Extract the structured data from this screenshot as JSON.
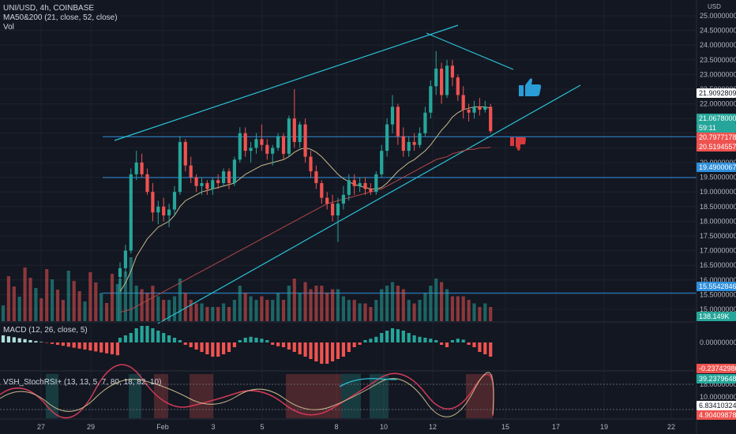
{
  "legend": {
    "symbol_line": "UNI/USD, 4h, COINBASE",
    "ma_line": "MA50&200 (21, close, 52, close)",
    "vol_line": "Vol",
    "macd_line": "MACD (12, 26, close, 5)",
    "stoch_line": "VSH_StochRSI+ (13, 13, 5, 7, 80, 18, 82, 10)"
  },
  "colors": {
    "background": "#131722",
    "up": "#26a69a",
    "down": "#ef5350",
    "trendline": "#29c3d6",
    "hline": "#2f8fdc",
    "ma_fast": "#c8b98a",
    "ma_slow": "#b04848",
    "grid": "#1e222d"
  },
  "chart_data": {
    "type": "candlestick",
    "title": "UNI/USD, 4h, COINBASE",
    "ylabel": "USD",
    "ylim": [
      14.5,
      25.5
    ],
    "x_ticks": [
      "27",
      "29",
      "Feb",
      "3",
      "5",
      "8",
      "10",
      "12",
      "15",
      "17",
      "19",
      "22"
    ],
    "y_ticks": [
      "25.00000000",
      "24.50000000",
      "24.00000000",
      "23.50000000",
      "23.00000000",
      "22.50000000",
      "22.00000000",
      "21.50000000",
      "21.00000000",
      "20.50000000",
      "20.00000000",
      "19.50000000",
      "19.00000000",
      "18.50000000",
      "18.00000000",
      "17.50000000",
      "17.00000000",
      "16.50000000",
      "16.00000000",
      "15.50000000",
      "15.00000000"
    ],
    "price_tags": [
      {
        "label": "21.90928095",
        "value": 21.909,
        "color": "#ffffff"
      },
      {
        "label": "21.06780000",
        "value": 21.068,
        "color": "#26a69a"
      },
      {
        "label": "59:11",
        "value": 20.9,
        "color": "#26a69a"
      },
      {
        "label": "20.79771786",
        "value": 20.798,
        "color": "#ef5350"
      },
      {
        "label": "20.51945577",
        "value": 20.519,
        "color": "#ef5350"
      },
      {
        "label": "19.49000672",
        "value": 19.49,
        "color": "#2f8fdc"
      },
      {
        "label": "15.55428466",
        "value": 15.554,
        "color": "#2f8fdc"
      }
    ],
    "volume_label": "138.149K",
    "horizontal_lines": [
      20.88,
      19.49,
      15.554
    ],
    "macd_ticks": [
      "0.00000000"
    ],
    "macd_tag": "-0.23742986",
    "stoch_ticks": [
      "18.00000000",
      "10.00000000"
    ],
    "stoch_tags": [
      "39.23796487",
      "6.83410324",
      "4.90409878"
    ],
    "candles": [
      {
        "o": 16.1,
        "h": 16.6,
        "l": 15.6,
        "c": 16.4
      },
      {
        "o": 16.4,
        "h": 17.2,
        "l": 16.1,
        "c": 17.0
      },
      {
        "o": 17.0,
        "h": 19.8,
        "l": 16.9,
        "c": 19.6
      },
      {
        "o": 19.6,
        "h": 20.4,
        "l": 19.4,
        "c": 20.0
      },
      {
        "o": 20.0,
        "h": 20.3,
        "l": 19.5,
        "c": 19.6
      },
      {
        "o": 19.6,
        "h": 19.8,
        "l": 18.9,
        "c": 19.0
      },
      {
        "o": 19.0,
        "h": 19.3,
        "l": 18.0,
        "c": 18.3
      },
      {
        "o": 18.3,
        "h": 18.7,
        "l": 17.9,
        "c": 18.5
      },
      {
        "o": 18.5,
        "h": 18.8,
        "l": 18.0,
        "c": 18.2
      },
      {
        "o": 18.2,
        "h": 18.6,
        "l": 17.8,
        "c": 18.4
      },
      {
        "o": 18.4,
        "h": 19.2,
        "l": 18.2,
        "c": 19.0
      },
      {
        "o": 19.0,
        "h": 20.9,
        "l": 18.9,
        "c": 20.7
      },
      {
        "o": 20.7,
        "h": 20.8,
        "l": 19.7,
        "c": 19.9
      },
      {
        "o": 19.9,
        "h": 20.2,
        "l": 19.3,
        "c": 19.5
      },
      {
        "o": 19.5,
        "h": 19.6,
        "l": 19.0,
        "c": 19.2
      },
      {
        "o": 19.2,
        "h": 19.5,
        "l": 18.9,
        "c": 19.3
      },
      {
        "o": 19.3,
        "h": 19.4,
        "l": 18.9,
        "c": 19.1
      },
      {
        "o": 19.1,
        "h": 19.5,
        "l": 18.9,
        "c": 19.4
      },
      {
        "o": 19.4,
        "h": 19.6,
        "l": 19.1,
        "c": 19.3
      },
      {
        "o": 19.3,
        "h": 19.8,
        "l": 19.2,
        "c": 19.7
      },
      {
        "o": 19.7,
        "h": 19.8,
        "l": 19.1,
        "c": 19.3
      },
      {
        "o": 19.3,
        "h": 20.2,
        "l": 19.2,
        "c": 20.1
      },
      {
        "o": 20.1,
        "h": 21.2,
        "l": 20.0,
        "c": 21.0
      },
      {
        "o": 21.0,
        "h": 21.2,
        "l": 20.2,
        "c": 20.4
      },
      {
        "o": 20.4,
        "h": 20.7,
        "l": 20.0,
        "c": 20.5
      },
      {
        "o": 20.5,
        "h": 21.0,
        "l": 20.3,
        "c": 20.8
      },
      {
        "o": 20.8,
        "h": 21.3,
        "l": 20.4,
        "c": 20.6
      },
      {
        "o": 20.6,
        "h": 20.8,
        "l": 20.1,
        "c": 20.3
      },
      {
        "o": 20.3,
        "h": 20.6,
        "l": 19.9,
        "c": 20.5
      },
      {
        "o": 20.5,
        "h": 21.0,
        "l": 20.4,
        "c": 20.9
      },
      {
        "o": 20.9,
        "h": 21.0,
        "l": 20.1,
        "c": 20.3
      },
      {
        "o": 20.3,
        "h": 21.6,
        "l": 20.2,
        "c": 21.5
      },
      {
        "o": 21.5,
        "h": 22.5,
        "l": 20.5,
        "c": 20.7
      },
      {
        "o": 20.7,
        "h": 21.4,
        "l": 20.5,
        "c": 21.3
      },
      {
        "o": 21.3,
        "h": 21.5,
        "l": 20.0,
        "c": 20.2
      },
      {
        "o": 20.2,
        "h": 20.4,
        "l": 19.5,
        "c": 19.7
      },
      {
        "o": 19.7,
        "h": 19.9,
        "l": 19.1,
        "c": 19.3
      },
      {
        "o": 19.3,
        "h": 19.4,
        "l": 18.6,
        "c": 18.8
      },
      {
        "o": 18.8,
        "h": 19.0,
        "l": 18.4,
        "c": 18.6
      },
      {
        "o": 18.6,
        "h": 18.9,
        "l": 18.0,
        "c": 18.2
      },
      {
        "o": 18.2,
        "h": 18.8,
        "l": 17.3,
        "c": 18.6
      },
      {
        "o": 18.6,
        "h": 19.2,
        "l": 18.4,
        "c": 18.9
      },
      {
        "o": 18.9,
        "h": 19.6,
        "l": 18.7,
        "c": 19.4
      },
      {
        "o": 19.4,
        "h": 19.6,
        "l": 18.9,
        "c": 19.2
      },
      {
        "o": 19.2,
        "h": 19.5,
        "l": 19.0,
        "c": 19.3
      },
      {
        "o": 19.3,
        "h": 19.5,
        "l": 18.9,
        "c": 19.1
      },
      {
        "o": 19.1,
        "h": 19.3,
        "l": 18.9,
        "c": 19.0
      },
      {
        "o": 19.0,
        "h": 19.7,
        "l": 18.9,
        "c": 19.6
      },
      {
        "o": 19.6,
        "h": 20.6,
        "l": 19.5,
        "c": 20.4
      },
      {
        "o": 20.4,
        "h": 21.5,
        "l": 20.2,
        "c": 21.3
      },
      {
        "o": 21.3,
        "h": 22.3,
        "l": 21.0,
        "c": 21.9
      },
      {
        "o": 21.9,
        "h": 22.0,
        "l": 20.6,
        "c": 20.9
      },
      {
        "o": 20.9,
        "h": 21.2,
        "l": 20.2,
        "c": 20.4
      },
      {
        "o": 20.4,
        "h": 20.9,
        "l": 20.2,
        "c": 20.7
      },
      {
        "o": 20.7,
        "h": 21.0,
        "l": 20.4,
        "c": 20.6
      },
      {
        "o": 20.6,
        "h": 21.2,
        "l": 20.5,
        "c": 21.0
      },
      {
        "o": 21.0,
        "h": 21.9,
        "l": 20.9,
        "c": 21.7
      },
      {
        "o": 21.7,
        "h": 22.8,
        "l": 21.5,
        "c": 22.6
      },
      {
        "o": 22.6,
        "h": 23.8,
        "l": 22.3,
        "c": 23.2
      },
      {
        "o": 23.2,
        "h": 23.4,
        "l": 22.0,
        "c": 22.3
      },
      {
        "o": 22.3,
        "h": 23.5,
        "l": 22.2,
        "c": 23.3
      },
      {
        "o": 23.3,
        "h": 23.5,
        "l": 22.6,
        "c": 22.9
      },
      {
        "o": 22.9,
        "h": 23.0,
        "l": 22.1,
        "c": 22.3
      },
      {
        "o": 22.3,
        "h": 22.6,
        "l": 21.5,
        "c": 21.8
      },
      {
        "o": 21.8,
        "h": 22.0,
        "l": 21.4,
        "c": 21.7
      },
      {
        "o": 21.7,
        "h": 22.1,
        "l": 21.5,
        "c": 21.9
      },
      {
        "o": 21.9,
        "h": 22.2,
        "l": 21.6,
        "c": 21.8
      },
      {
        "o": 21.8,
        "h": 22.1,
        "l": 21.7,
        "c": 21.9
      },
      {
        "o": 21.9,
        "h": 22.0,
        "l": 21.0,
        "c": 21.07
      }
    ],
    "volume": [
      0.6,
      0.7,
      0.9,
      0.5,
      0.45,
      0.4,
      0.5,
      0.35,
      0.3,
      0.3,
      0.35,
      0.6,
      0.4,
      0.3,
      0.25,
      0.25,
      0.2,
      0.2,
      0.2,
      0.25,
      0.2,
      0.3,
      0.5,
      0.4,
      0.35,
      0.3,
      0.35,
      0.3,
      0.3,
      0.4,
      0.3,
      0.5,
      0.6,
      0.4,
      0.55,
      0.45,
      0.5,
      0.5,
      0.4,
      0.45,
      0.45,
      0.35,
      0.3,
      0.3,
      0.25,
      0.25,
      0.2,
      0.3,
      0.45,
      0.5,
      0.55,
      0.5,
      0.45,
      0.3,
      0.25,
      0.3,
      0.4,
      0.5,
      0.6,
      0.55,
      0.45,
      0.35,
      0.35,
      0.35,
      0.3,
      0.25,
      0.2,
      0.25,
      0.2
    ],
    "ma21": [
      15.6,
      15.9,
      16.3,
      16.8,
      17.1,
      17.4,
      17.6,
      17.8,
      17.9,
      18.0,
      18.2,
      18.5,
      18.7,
      18.8,
      18.9,
      19.0,
      19.05,
      19.1,
      19.15,
      19.2,
      19.25,
      19.3,
      19.45,
      19.6,
      19.7,
      19.8,
      19.9,
      19.95,
      20.0,
      20.05,
      20.1,
      20.2,
      20.35,
      20.45,
      20.5,
      20.45,
      20.35,
      20.2,
      20.0,
      19.8,
      19.6,
      19.45,
      19.35,
      19.25,
      19.2,
      19.15,
      19.1,
      19.1,
      19.15,
      19.3,
      19.5,
      19.7,
      19.85,
      20.0,
      20.1,
      20.25,
      20.4,
      20.6,
      20.85,
      21.1,
      21.3,
      21.55,
      21.7,
      21.8,
      21.85,
      21.9,
      21.9,
      21.9,
      21.85
    ],
    "ma52": [
      14.9,
      14.95,
      15.0,
      15.1,
      15.2,
      15.3,
      15.4,
      15.5,
      15.6,
      15.7,
      15.8,
      15.9,
      16.0,
      16.1,
      16.2,
      16.3,
      16.4,
      16.5,
      16.6,
      16.7,
      16.8,
      16.9,
      17.0,
      17.1,
      17.2,
      17.3,
      17.4,
      17.5,
      17.6,
      17.7,
      17.8,
      17.9,
      18.0,
      18.1,
      18.2,
      18.3,
      18.4,
      18.5,
      18.6,
      18.65,
      18.7,
      18.75,
      18.8,
      18.85,
      18.9,
      18.95,
      19.0,
      19.05,
      19.1,
      19.2,
      19.3,
      19.4,
      19.5,
      19.6,
      19.7,
      19.8,
      19.9,
      20.0,
      20.1,
      20.15,
      20.2,
      20.3,
      20.35,
      20.4,
      20.45,
      20.45,
      20.5,
      20.5,
      20.52
    ],
    "macd_hist": [
      0.1,
      0.15,
      0.2,
      0.3,
      0.35,
      0.35,
      0.3,
      0.25,
      0.2,
      0.15,
      0.1,
      0.05,
      -0.05,
      -0.1,
      -0.15,
      -0.2,
      -0.25,
      -0.3,
      -0.3,
      -0.25,
      -0.2,
      -0.1,
      0.05,
      0.1,
      0.12,
      0.1,
      0.08,
      0.05,
      -0.05,
      -0.08,
      -0.1,
      -0.15,
      -0.2,
      -0.25,
      -0.3,
      -0.35,
      -0.4,
      -0.45,
      -0.45,
      -0.4,
      -0.35,
      -0.3,
      -0.2,
      -0.1,
      -0.05,
      0.05,
      0.08,
      0.12,
      0.2,
      0.25,
      0.3,
      0.28,
      0.25,
      0.2,
      0.15,
      0.12,
      0.1,
      0.08,
      0.05,
      -0.05,
      -0.1,
      0.05,
      0.08,
      0.06,
      -0.05,
      -0.1,
      -0.2,
      -0.25,
      -0.3
    ]
  }
}
